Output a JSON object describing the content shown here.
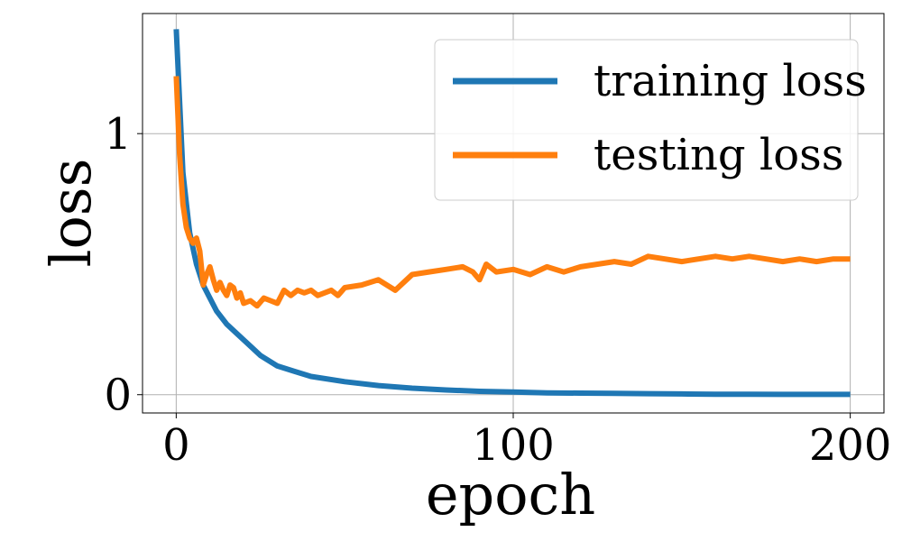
{
  "chart_data": {
    "type": "line",
    "title": "",
    "xlabel": "epoch",
    "ylabel": "loss",
    "xlim": [
      -10,
      210
    ],
    "ylim": [
      -0.07,
      1.46
    ],
    "xticks": [
      {
        "value": 0,
        "label": "0"
      },
      {
        "value": 100,
        "label": "100"
      },
      {
        "value": 200,
        "label": "200"
      }
    ],
    "yticks": [
      {
        "value": 0,
        "label": "0"
      },
      {
        "value": 1,
        "label": "1"
      }
    ],
    "grid": true,
    "legend_position": "top-right",
    "series": [
      {
        "name": "training loss",
        "color": "#1f77b4",
        "x": [
          0,
          2,
          4,
          6,
          8,
          10,
          12,
          15,
          20,
          25,
          30,
          35,
          40,
          50,
          60,
          70,
          80,
          90,
          100,
          110,
          120,
          130,
          140,
          150,
          160,
          170,
          180,
          190,
          200
        ],
        "y": [
          1.4,
          0.85,
          0.62,
          0.5,
          0.42,
          0.37,
          0.32,
          0.27,
          0.21,
          0.15,
          0.11,
          0.09,
          0.07,
          0.05,
          0.035,
          0.025,
          0.018,
          0.013,
          0.01,
          0.007,
          0.006,
          0.005,
          0.004,
          0.003,
          0.002,
          0.002,
          0.001,
          0.001,
          0.001
        ]
      },
      {
        "name": "testing loss",
        "color": "#ff7f0e",
        "x": [
          0,
          1,
          2,
          3,
          4,
          5,
          6,
          7,
          8,
          9,
          10,
          11,
          12,
          13,
          14,
          15,
          16,
          17,
          18,
          19,
          20,
          22,
          24,
          26,
          28,
          30,
          32,
          34,
          36,
          38,
          40,
          42,
          44,
          46,
          48,
          50,
          55,
          60,
          65,
          70,
          75,
          80,
          85,
          88,
          90,
          92,
          95,
          100,
          105,
          110,
          115,
          120,
          125,
          130,
          135,
          140,
          145,
          150,
          155,
          160,
          165,
          170,
          175,
          180,
          185,
          190,
          195,
          200
        ],
        "y": [
          1.22,
          0.92,
          0.73,
          0.64,
          0.6,
          0.58,
          0.6,
          0.55,
          0.42,
          0.46,
          0.49,
          0.44,
          0.4,
          0.43,
          0.4,
          0.38,
          0.42,
          0.41,
          0.37,
          0.39,
          0.35,
          0.36,
          0.34,
          0.37,
          0.36,
          0.35,
          0.4,
          0.38,
          0.4,
          0.39,
          0.4,
          0.38,
          0.39,
          0.4,
          0.38,
          0.41,
          0.42,
          0.44,
          0.4,
          0.46,
          0.47,
          0.48,
          0.49,
          0.47,
          0.44,
          0.5,
          0.47,
          0.48,
          0.46,
          0.49,
          0.47,
          0.49,
          0.5,
          0.51,
          0.5,
          0.53,
          0.52,
          0.51,
          0.52,
          0.53,
          0.52,
          0.53,
          0.52,
          0.51,
          0.52,
          0.51,
          0.52,
          0.52
        ]
      }
    ]
  }
}
